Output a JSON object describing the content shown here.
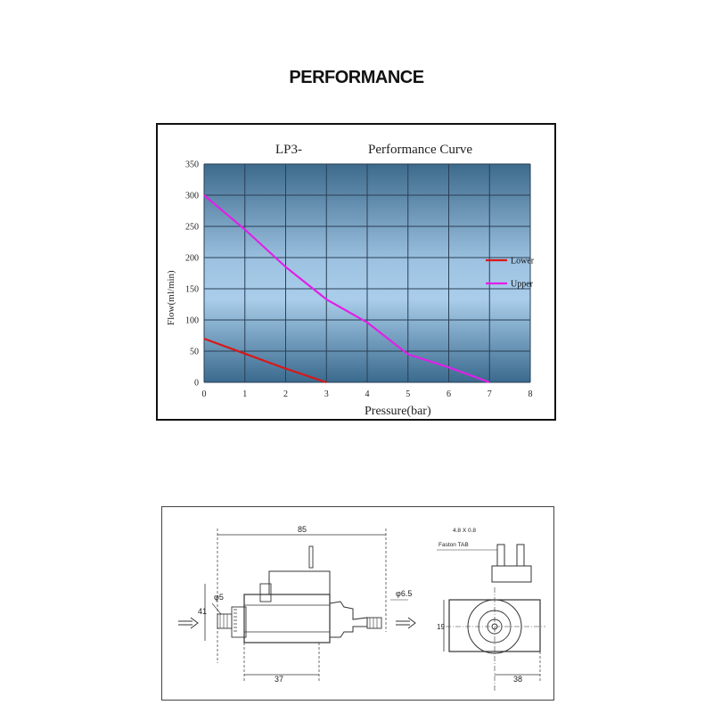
{
  "page": {
    "title": "PERFORMANCE"
  },
  "chart_data": {
    "type": "line",
    "title_left": "LP3-",
    "title": "Performance Curve",
    "xlabel": "Pressure(bar)",
    "ylabel": "Flow(ml/min)",
    "xlim": [
      0,
      8
    ],
    "ylim": [
      0,
      350
    ],
    "xticks": [
      0,
      1,
      2,
      3,
      4,
      5,
      6,
      7,
      8
    ],
    "yticks": [
      0,
      50,
      100,
      150,
      200,
      250,
      300,
      350
    ],
    "grid": true,
    "legend_position": "right",
    "series": [
      {
        "name": "Lower",
        "color": "#d81818",
        "x": [
          0,
          1,
          2,
          3
        ],
        "y": [
          70,
          46,
          22,
          0
        ]
      },
      {
        "name": "Upper",
        "color": "#e020e8",
        "x": [
          0,
          1,
          2,
          3,
          4,
          5,
          6,
          7
        ],
        "y": [
          300,
          245,
          185,
          133,
          96,
          45,
          24,
          0
        ]
      }
    ]
  },
  "drawing": {
    "dim_length": "85",
    "dim_height": "41",
    "dim_inlet": "φ5",
    "dim_outlet": "φ6.5",
    "dim_body": "37",
    "terminal_size": "4.8 X 0.8",
    "terminal_type": "Faston TAB",
    "dim_side_height": "19",
    "dim_side_width": "38"
  }
}
